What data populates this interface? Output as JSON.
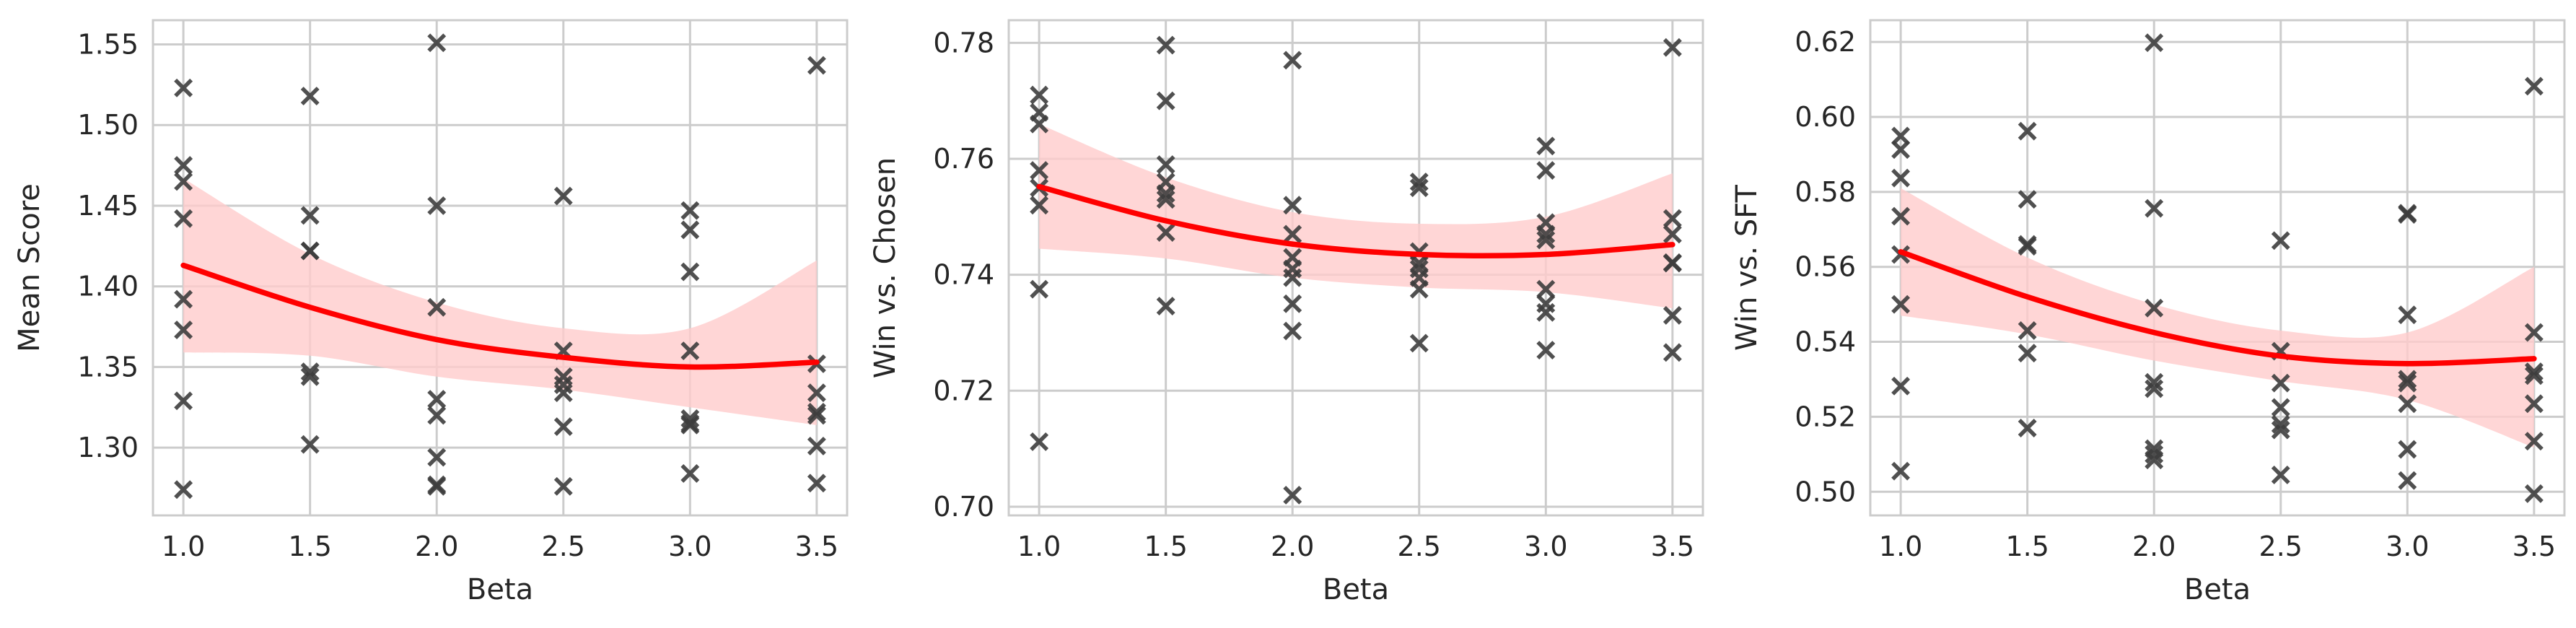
{
  "colors": {
    "fit_line": "#ff0000",
    "ci_band": "#ffcccc",
    "points": "#3d3d3d",
    "grid": "#cccccc",
    "frame": "#cccccc",
    "text": "#262626",
    "background": "#ffffff"
  },
  "chart_data": [
    {
      "type": "scatter",
      "title": "",
      "xlabel": "Beta",
      "ylabel": "Mean Score",
      "xlim": [
        0.88,
        3.62
      ],
      "ylim": [
        1.258,
        1.565
      ],
      "x_ticks": [
        1.0,
        1.5,
        2.0,
        2.5,
        3.0,
        3.5
      ],
      "x_tick_labels": [
        "1.0",
        "1.5",
        "2.0",
        "2.5",
        "3.0",
        "3.5"
      ],
      "y_ticks": [
        1.3,
        1.35,
        1.4,
        1.45,
        1.5,
        1.55
      ],
      "y_tick_labels": [
        "1.30",
        "1.35",
        "1.40",
        "1.45",
        "1.50",
        "1.55"
      ],
      "grid": true,
      "legend": "none",
      "series": [
        {
          "marker": "x",
          "points": [
            [
              1.0,
              1.523
            ],
            [
              1.0,
              1.475
            ],
            [
              1.0,
              1.465
            ],
            [
              1.0,
              1.442
            ],
            [
              1.0,
              1.392
            ],
            [
              1.0,
              1.373
            ],
            [
              1.0,
              1.329
            ],
            [
              1.0,
              1.274
            ],
            [
              1.5,
              1.518
            ],
            [
              1.5,
              1.444
            ],
            [
              1.5,
              1.422
            ],
            [
              1.5,
              1.422
            ],
            [
              1.5,
              1.347
            ],
            [
              1.5,
              1.344
            ],
            [
              1.5,
              1.302
            ],
            [
              2.0,
              1.551
            ],
            [
              2.0,
              1.45
            ],
            [
              2.0,
              1.387
            ],
            [
              2.0,
              1.33
            ],
            [
              2.0,
              1.32
            ],
            [
              2.0,
              1.294
            ],
            [
              2.0,
              1.277
            ],
            [
              2.0,
              1.276
            ],
            [
              2.5,
              1.456
            ],
            [
              2.5,
              1.36
            ],
            [
              2.5,
              1.344
            ],
            [
              2.5,
              1.339
            ],
            [
              2.5,
              1.334
            ],
            [
              2.5,
              1.313
            ],
            [
              2.5,
              1.276
            ],
            [
              3.0,
              1.447
            ],
            [
              3.0,
              1.435
            ],
            [
              3.0,
              1.409
            ],
            [
              3.0,
              1.36
            ],
            [
              3.0,
              1.318
            ],
            [
              3.0,
              1.315
            ],
            [
              3.0,
              1.314
            ],
            [
              3.0,
              1.284
            ],
            [
              3.5,
              1.537
            ],
            [
              3.5,
              1.352
            ],
            [
              3.5,
              1.334
            ],
            [
              3.5,
              1.322
            ],
            [
              3.5,
              1.32
            ],
            [
              3.5,
              1.301
            ],
            [
              3.5,
              1.278
            ]
          ]
        }
      ],
      "fit": {
        "type": "quadratic",
        "points": [
          [
            1.0,
            1.413
          ],
          [
            1.5,
            1.387
          ],
          [
            2.0,
            1.367
          ],
          [
            2.5,
            1.356
          ],
          [
            3.0,
            1.35
          ],
          [
            3.5,
            1.353
          ]
        ],
        "ci_upper": [
          [
            1.0,
            1.467
          ],
          [
            1.5,
            1.42
          ],
          [
            2.0,
            1.39
          ],
          [
            2.5,
            1.374
          ],
          [
            3.0,
            1.374
          ],
          [
            3.5,
            1.416
          ]
        ],
        "ci_lower": [
          [
            1.0,
            1.359
          ],
          [
            1.5,
            1.357
          ],
          [
            2.0,
            1.344
          ],
          [
            2.5,
            1.336
          ],
          [
            3.0,
            1.325
          ],
          [
            3.5,
            1.314
          ]
        ]
      }
    },
    {
      "type": "scatter",
      "title": "",
      "xlabel": "Beta",
      "ylabel": "Win vs. Chosen",
      "xlim": [
        0.88,
        3.62
      ],
      "ylim": [
        0.6985,
        0.7839
      ],
      "x_ticks": [
        1.0,
        1.5,
        2.0,
        2.5,
        3.0,
        3.5
      ],
      "x_tick_labels": [
        "1.0",
        "1.5",
        "2.0",
        "2.5",
        "3.0",
        "3.5"
      ],
      "y_ticks": [
        0.7,
        0.72,
        0.74,
        0.76,
        0.78
      ],
      "y_tick_labels": [
        "0.70",
        "0.72",
        "0.74",
        "0.76",
        "0.78"
      ],
      "grid": true,
      "legend": "none",
      "series": [
        {
          "marker": "x",
          "points": [
            [
              1.0,
              0.771
            ],
            [
              1.0,
              0.768
            ],
            [
              1.0,
              0.766
            ],
            [
              1.0,
              0.758
            ],
            [
              1.0,
              0.755
            ],
            [
              1.0,
              0.752
            ],
            [
              1.0,
              0.7375
            ],
            [
              1.0,
              0.7112
            ],
            [
              1.5,
              0.7796
            ],
            [
              1.5,
              0.77
            ],
            [
              1.5,
              0.759
            ],
            [
              1.5,
              0.756
            ],
            [
              1.5,
              0.754
            ],
            [
              1.5,
              0.753
            ],
            [
              1.5,
              0.7473
            ],
            [
              1.5,
              0.7346
            ],
            [
              2.0,
              0.777
            ],
            [
              2.0,
              0.752
            ],
            [
              2.0,
              0.747
            ],
            [
              2.0,
              0.743
            ],
            [
              2.0,
              0.741
            ],
            [
              2.0,
              0.7395
            ],
            [
              2.0,
              0.735
            ],
            [
              2.0,
              0.7303
            ],
            [
              2.0,
              0.702
            ],
            [
              2.5,
              0.756
            ],
            [
              2.5,
              0.755
            ],
            [
              2.5,
              0.744
            ],
            [
              2.5,
              0.742
            ],
            [
              2.5,
              0.741
            ],
            [
              2.5,
              0.7395
            ],
            [
              2.5,
              0.7375
            ],
            [
              2.5,
              0.7282
            ],
            [
              3.0,
              0.7622
            ],
            [
              3.0,
              0.758
            ],
            [
              3.0,
              0.749
            ],
            [
              3.0,
              0.747
            ],
            [
              3.0,
              0.746
            ],
            [
              3.0,
              0.7375
            ],
            [
              3.0,
              0.735
            ],
            [
              3.0,
              0.7335
            ],
            [
              3.0,
              0.727
            ],
            [
              3.5,
              0.7792
            ],
            [
              3.5,
              0.7497
            ],
            [
              3.5,
              0.747
            ],
            [
              3.5,
              0.7421
            ],
            [
              3.5,
              0.742
            ],
            [
              3.5,
              0.733
            ],
            [
              3.5,
              0.7266
            ]
          ]
        }
      ],
      "fit": {
        "type": "quadratic",
        "points": [
          [
            1.0,
            0.7552
          ],
          [
            1.5,
            0.7493
          ],
          [
            2.0,
            0.7453
          ],
          [
            2.5,
            0.7435
          ],
          [
            3.0,
            0.7435
          ],
          [
            3.5,
            0.7452
          ]
        ],
        "ci_upper": [
          [
            1.0,
            0.766
          ],
          [
            1.5,
            0.7568
          ],
          [
            2.0,
            0.7508
          ],
          [
            2.5,
            0.7488
          ],
          [
            3.0,
            0.75
          ],
          [
            3.5,
            0.7575
          ]
        ],
        "ci_lower": [
          [
            1.0,
            0.7445
          ],
          [
            1.5,
            0.7428
          ],
          [
            2.0,
            0.7395
          ],
          [
            2.5,
            0.7378
          ],
          [
            3.0,
            0.737
          ],
          [
            3.5,
            0.7342
          ]
        ]
      }
    },
    {
      "type": "scatter",
      "title": "",
      "xlabel": "Beta",
      "ylabel": "Win vs. SFT",
      "xlim": [
        0.88,
        3.62
      ],
      "ylim": [
        0.4937,
        0.6258
      ],
      "x_ticks": [
        1.0,
        1.5,
        2.0,
        2.5,
        3.0,
        3.5
      ],
      "x_tick_labels": [
        "1.0",
        "1.5",
        "2.0",
        "2.5",
        "3.0",
        "3.5"
      ],
      "y_ticks": [
        0.5,
        0.52,
        0.54,
        0.56,
        0.58,
        0.6,
        0.62
      ],
      "y_tick_labels": [
        "0.50",
        "0.52",
        "0.54",
        "0.56",
        "0.58",
        "0.60",
        "0.62"
      ],
      "grid": true,
      "legend": "none",
      "series": [
        {
          "marker": "x",
          "points": [
            [
              1.0,
              0.5949
            ],
            [
              1.0,
              0.5913
            ],
            [
              1.0,
              0.5837
            ],
            [
              1.0,
              0.5735
            ],
            [
              1.0,
              0.5633
            ],
            [
              1.0,
              0.55
            ],
            [
              1.0,
              0.5282
            ],
            [
              1.0,
              0.5055
            ],
            [
              1.5,
              0.5962
            ],
            [
              1.5,
              0.578
            ],
            [
              1.5,
              0.566
            ],
            [
              1.5,
              0.5655
            ],
            [
              1.5,
              0.543
            ],
            [
              1.5,
              0.537
            ],
            [
              1.5,
              0.517
            ],
            [
              2.0,
              0.6198
            ],
            [
              2.0,
              0.5756
            ],
            [
              2.0,
              0.549
            ],
            [
              2.0,
              0.5292
            ],
            [
              2.0,
              0.5275
            ],
            [
              2.0,
              0.5115
            ],
            [
              2.0,
              0.51
            ],
            [
              2.0,
              0.5085
            ],
            [
              2.5,
              0.567
            ],
            [
              2.5,
              0.5375
            ],
            [
              2.5,
              0.529
            ],
            [
              2.5,
              0.5225
            ],
            [
              2.5,
              0.518
            ],
            [
              2.5,
              0.5165
            ],
            [
              2.5,
              0.5045
            ],
            [
              3.0,
              0.5743
            ],
            [
              3.0,
              0.574
            ],
            [
              3.0,
              0.5472
            ],
            [
              3.0,
              0.53
            ],
            [
              3.0,
              0.529
            ],
            [
              3.0,
              0.5235
            ],
            [
              3.0,
              0.5113
            ],
            [
              3.0,
              0.503
            ],
            [
              3.5,
              0.6082
            ],
            [
              3.5,
              0.5425
            ],
            [
              3.5,
              0.532
            ],
            [
              3.5,
              0.531
            ],
            [
              3.5,
              0.5235
            ],
            [
              3.5,
              0.5135
            ],
            [
              3.5,
              0.4995
            ]
          ]
        }
      ],
      "fit": {
        "type": "quadratic",
        "points": [
          [
            1.0,
            0.564
          ],
          [
            1.5,
            0.552
          ],
          [
            2.0,
            0.5425
          ],
          [
            2.5,
            0.5362
          ],
          [
            3.0,
            0.5342
          ],
          [
            3.5,
            0.5355
          ]
        ],
        "ci_upper": [
          [
            1.0,
            0.581
          ],
          [
            1.5,
            0.5625
          ],
          [
            2.0,
            0.55
          ],
          [
            2.5,
            0.543
          ],
          [
            3.0,
            0.5425
          ],
          [
            3.5,
            0.56
          ]
        ],
        "ci_lower": [
          [
            1.0,
            0.547
          ],
          [
            1.5,
            0.542
          ],
          [
            2.0,
            0.535
          ],
          [
            2.5,
            0.5295
          ],
          [
            3.0,
            0.5245
          ],
          [
            3.5,
            0.5118
          ]
        ]
      }
    }
  ]
}
